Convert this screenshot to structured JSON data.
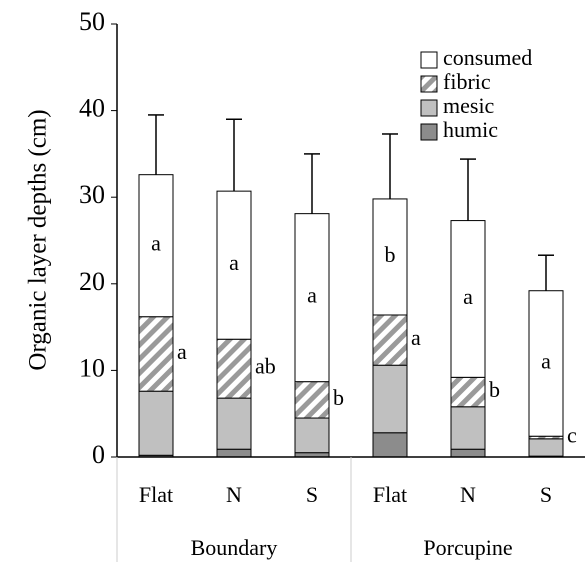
{
  "chart_data": {
    "type": "stacked-bar",
    "y_label": "Organic layer depths (cm)",
    "categories": [
      "Flat",
      "N",
      "S",
      "Flat",
      "N",
      "S"
    ],
    "groups": [
      "Boundary",
      "Porcupine"
    ],
    "ylim": [
      0,
      50
    ],
    "yticks": [
      0,
      10,
      20,
      30,
      40,
      50
    ],
    "series": [
      {
        "name": "humic",
        "color": "#8c8c8c",
        "values": [
          0.2,
          0.9,
          0.5,
          2.8,
          0.9,
          0.1
        ]
      },
      {
        "name": "mesic",
        "color": "#c0c0c0",
        "values": [
          7.4,
          5.9,
          4.0,
          7.8,
          4.9,
          2.0
        ]
      },
      {
        "name": "fibric",
        "color": "#9a9a9a",
        "pattern": "hatch",
        "values": [
          8.6,
          6.8,
          4.2,
          5.8,
          3.4,
          0.3
        ],
        "letters": [
          "a",
          "ab",
          "b",
          "a",
          "b",
          "c"
        ]
      },
      {
        "name": "consumed",
        "color": "#ffffff",
        "values": [
          16.4,
          17.1,
          19.4,
          13.4,
          18.1,
          16.8
        ],
        "letters": [
          "a",
          "a",
          "a",
          "b",
          "a",
          "a"
        ]
      }
    ],
    "errors": [
      6.9,
      8.3,
      6.9,
      7.5,
      7.1,
      4.1
    ],
    "legend": "top-right"
  }
}
